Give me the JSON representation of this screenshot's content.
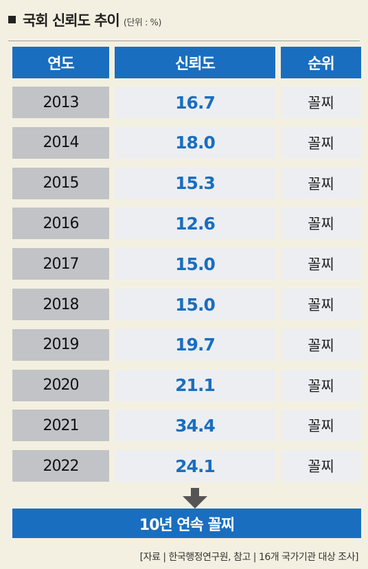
{
  "title": {
    "main": "국회 신뢰도 추이",
    "unit": "(단위 : %)"
  },
  "table": {
    "headers": [
      "연도",
      "신뢰도",
      "순위"
    ]
  },
  "chart_data": {
    "type": "table",
    "title": "국회 신뢰도 추이",
    "unit": "%",
    "columns": [
      "연도",
      "신뢰도",
      "순위"
    ],
    "rows": [
      {
        "year": "2013",
        "value": 16.7,
        "value_label": "16.7",
        "rank": "꼴찌"
      },
      {
        "year": "2014",
        "value": 18.0,
        "value_label": "18.0",
        "rank": "꼴찌"
      },
      {
        "year": "2015",
        "value": 15.3,
        "value_label": "15.3",
        "rank": "꼴찌"
      },
      {
        "year": "2016",
        "value": 12.6,
        "value_label": "12.6",
        "rank": "꼴찌"
      },
      {
        "year": "2017",
        "value": 15.0,
        "value_label": "15.0",
        "rank": "꼴찌"
      },
      {
        "year": "2018",
        "value": 15.0,
        "value_label": "15.0",
        "rank": "꼴찌"
      },
      {
        "year": "2019",
        "value": 19.7,
        "value_label": "19.7",
        "rank": "꼴찌"
      },
      {
        "year": "2020",
        "value": 21.1,
        "value_label": "21.1",
        "rank": "꼴찌"
      },
      {
        "year": "2021",
        "value": 34.4,
        "value_label": "34.4",
        "rank": "꼴찌"
      },
      {
        "year": "2022",
        "value": 24.1,
        "value_label": "24.1",
        "rank": "꼴찌"
      }
    ]
  },
  "summary": {
    "text": "10년 연속 꼴찌"
  },
  "source": {
    "text": "[자료 | 한국행정연구원, 참고 | 16개 국가기관 대상 조사]"
  },
  "colors": {
    "accent": "#1a6ebf",
    "year_cell": "#c2c3c6",
    "value_cell": "#eceef1",
    "background": "#f4f0e1"
  },
  "icons": {
    "arrow": "arrow-down-icon"
  }
}
